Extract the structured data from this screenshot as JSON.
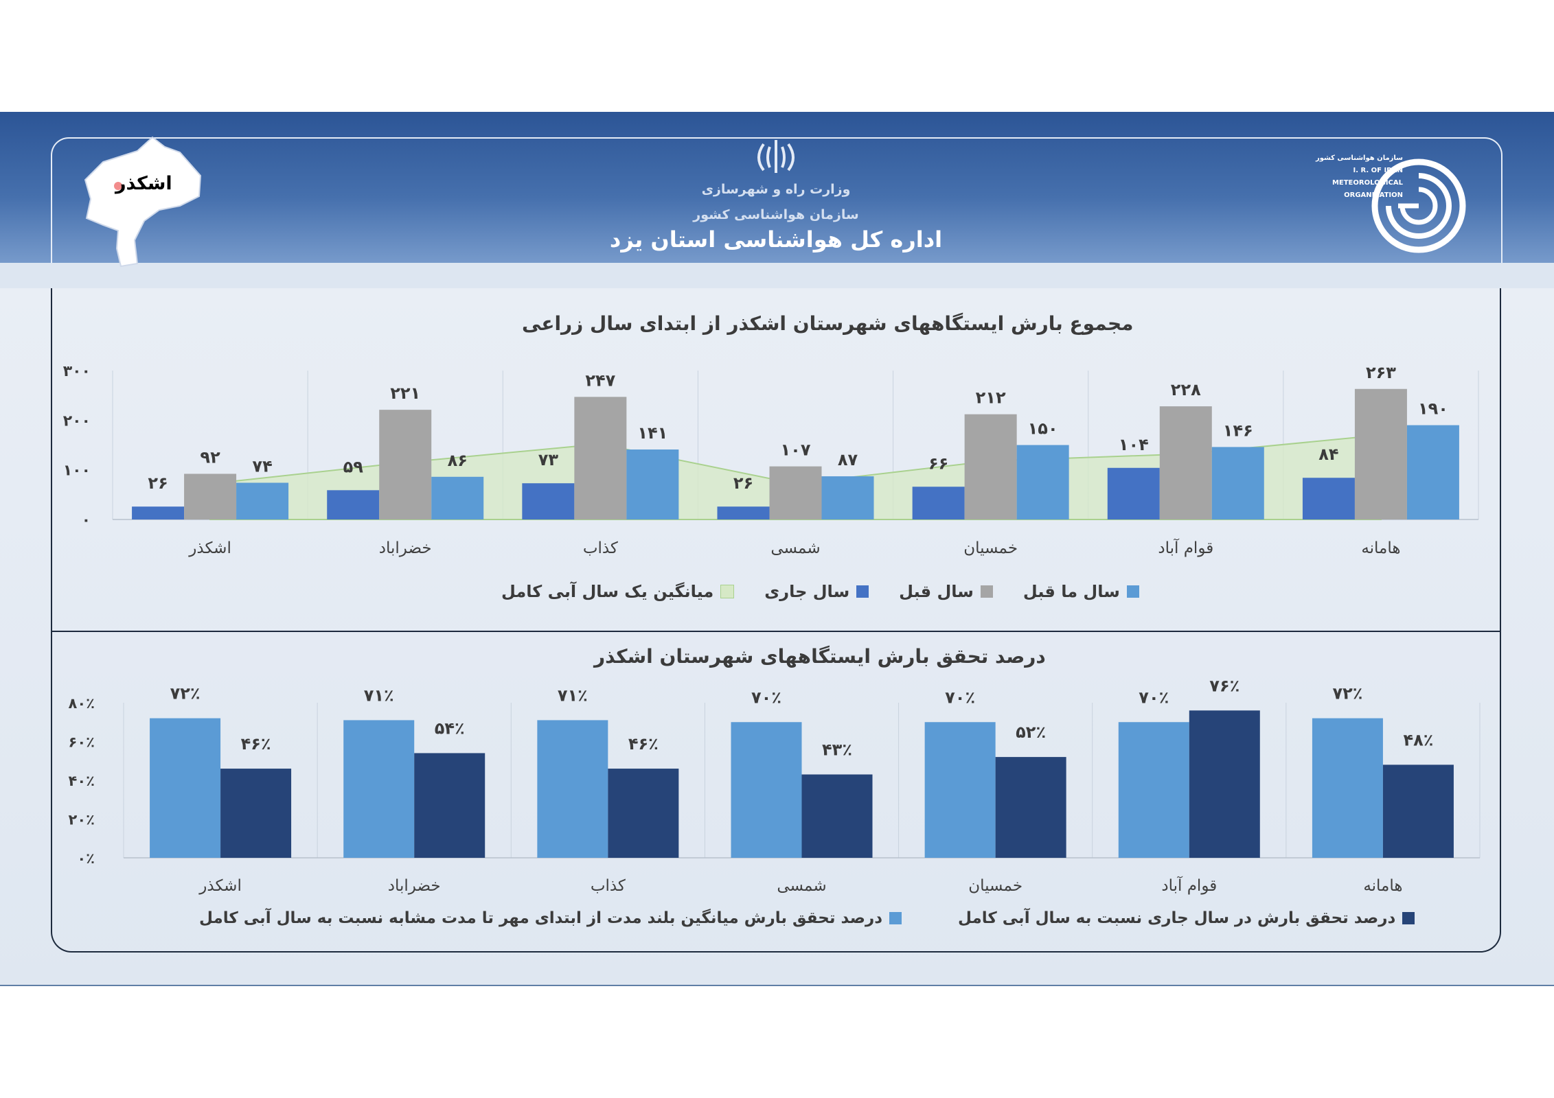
{
  "header": {
    "ministry": "وزارت راه و شهرسازی",
    "organization": "سازمان هواشناسی کشور",
    "title": "اداره کل هواشناسی استان یزد",
    "map_label": "اشکذر",
    "logo_lines": [
      "سازمان هواشناسی کشور",
      "I. R. OF IRAN",
      "METEOROLOGICAL",
      "ORGANIZATION"
    ]
  },
  "colors": {
    "current_year": "#4472c4",
    "previous_year": "#a5a5a5",
    "year_before": "#5b9bd5",
    "long_term_area": "#d6e9c6",
    "dark_blue": "#264478"
  },
  "chart_data": [
    {
      "type": "bar",
      "title": "مجموع بارش ایستگاههای شهرستان اشکذر  از ابتدای سال زراعی",
      "categories": [
        "اشکذر",
        "خضراباد",
        "کذاب",
        "شمسی",
        "خمسیان",
        "قوام آباد",
        "هامانه"
      ],
      "ylim": [
        0,
        300
      ],
      "yticks": [
        "۰",
        "۱۰۰",
        "۲۰۰",
        "۳۰۰"
      ],
      "ytick_values": [
        0,
        100,
        200,
        300
      ],
      "series": [
        {
          "name": "سال جاری",
          "values": [
            26,
            59,
            73,
            26,
            66,
            104,
            84
          ],
          "labels": [
            "۲۶",
            "۵۹",
            "۷۳",
            "۲۶",
            "۶۶",
            "۱۰۴",
            "۸۴"
          ]
        },
        {
          "name": "سال قبل",
          "values": [
            92,
            221,
            247,
            107,
            212,
            228,
            263
          ],
          "labels": [
            "۹۲",
            "۲۲۱",
            "۲۴۷",
            "۱۰۷",
            "۲۱۲",
            "۲۲۸",
            "۲۶۳"
          ]
        },
        {
          "name": "سال ما قبل",
          "values": [
            74,
            86,
            141,
            87,
            150,
            146,
            190
          ],
          "labels": [
            "۷۴",
            "۸۶",
            "۱۴۱",
            "۸۷",
            "۱۵۰",
            "۱۴۶",
            "۱۹۰"
          ]
        },
        {
          "name": "میانگین  یک سال آبی کامل",
          "type": "area",
          "values": [
            72,
            115,
            152,
            72,
            118,
            132,
            170
          ]
        }
      ],
      "legend_position": "bottom"
    },
    {
      "type": "bar",
      "title": "درصد تحقق بارش ایستگاههای شهرستان اشکذر",
      "categories": [
        "اشکذر",
        "خضراباد",
        "کذاب",
        "شمسی",
        "خمسیان",
        "قوام آباد",
        "هامانه"
      ],
      "ylim": [
        0,
        80
      ],
      "yticks": [
        "۰٪",
        "۲۰٪",
        "۴۰٪",
        "۶۰٪",
        "۸۰٪"
      ],
      "ytick_values": [
        0,
        20,
        40,
        60,
        80
      ],
      "series": [
        {
          "name": "درصد تحقق بارش میانگین بلند مدت از ابتدای مهر تا مدت مشابه نسبت به سال آبی کامل",
          "values": [
            72,
            71,
            71,
            70,
            70,
            70,
            72
          ],
          "labels": [
            "۷۲٪",
            "۷۱٪",
            "۷۱٪",
            "۷۰٪",
            "۷۰٪",
            "۷۰٪",
            "۷۲٪"
          ]
        },
        {
          "name": "درصد تحقق بارش در سال جاری نسبت به سال آبی کامل",
          "values": [
            46,
            54,
            46,
            43,
            52,
            76,
            48
          ],
          "labels": [
            "۴۶٪",
            "۵۴٪",
            "۴۶٪",
            "۴۳٪",
            "۵۲٪",
            "۷۶٪",
            "۴۸٪"
          ]
        }
      ],
      "legend_position": "bottom"
    }
  ]
}
